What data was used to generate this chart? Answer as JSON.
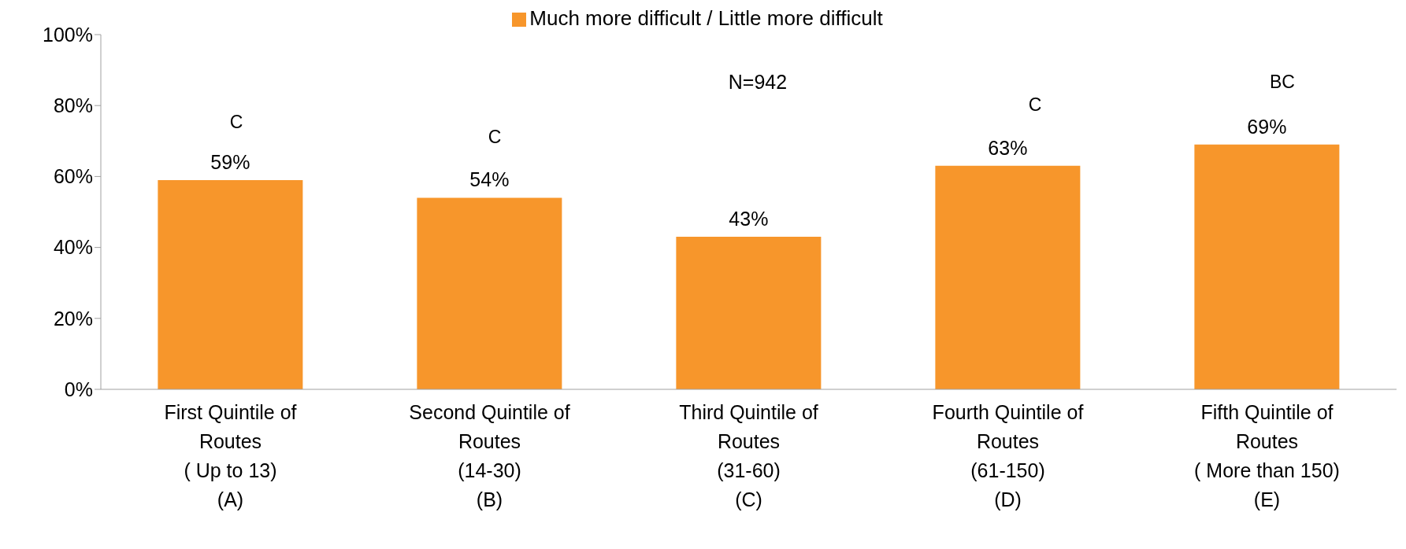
{
  "chart_data": {
    "type": "bar",
    "categories": [
      "First Quintile of\nRoutes\n( Up to 13)\n(A)",
      "Second Quintile of\nRoutes\n(14-30)\n(B)",
      "Third Quintile of\nRoutes\n(31-60)\n(C)",
      "Fourth Quintile of\nRoutes\n(61-150)\n(D)",
      "Fifth Quintile of\nRoutes\n( More than 150)\n(E)"
    ],
    "series": [
      {
        "name": "Much more difficult / Little more difficult",
        "color": "#f7962b",
        "values": [
          59,
          54,
          43,
          63,
          69
        ]
      }
    ],
    "ylim": [
      0,
      100
    ],
    "yticks": [
      {
        "value": 0,
        "label": "0%"
      },
      {
        "value": 20,
        "label": "20%"
      },
      {
        "value": 40,
        "label": "40%"
      },
      {
        "value": 60,
        "label": "60%"
      },
      {
        "value": 80,
        "label": "80%"
      },
      {
        "value": 100,
        "label": "100%"
      }
    ],
    "value_labels": [
      "59%",
      "54%",
      "43%",
      "63%",
      "69%"
    ],
    "annotations": [
      "N=942",
      "C",
      "C",
      "C",
      "BC"
    ],
    "legend": "top",
    "grid": false
  }
}
